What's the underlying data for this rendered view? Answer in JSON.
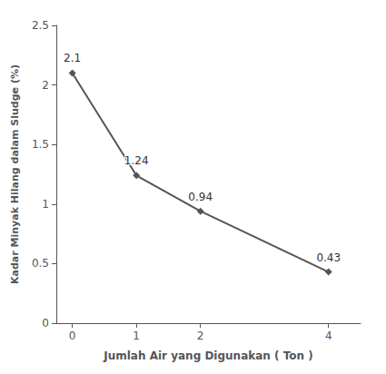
{
  "chart_data": {
    "type": "line",
    "x": [
      0,
      1,
      2,
      4
    ],
    "values": [
      2.1,
      1.24,
      0.94,
      0.43
    ],
    "xlabel": "Jumlah Air yang Digunakan ( Ton )",
    "ylabel": "Kadar Minyak Hilang dalam Sludge (%)",
    "xlim": [
      -0.25,
      4.5
    ],
    "ylim": [
      0,
      2.5
    ],
    "xticks": [
      0,
      1,
      2,
      4
    ],
    "yticks": [
      0,
      0.5,
      1,
      1.5,
      2,
      2.5
    ],
    "color": "#555555",
    "marker": "diamond",
    "data_labels": true,
    "grid": false
  }
}
